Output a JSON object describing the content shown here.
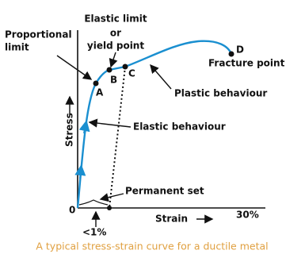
{
  "labels": {
    "elastic_limit": "Elastic limit",
    "or": "or",
    "yield_point": "yield point",
    "proportional": "Proportional",
    "limit": "limit",
    "point_a": "A",
    "point_b": "B",
    "point_c": "C",
    "point_d": "D",
    "fracture_point": "Fracture point",
    "plastic_behaviour": "Plastic behaviour",
    "elastic_behaviour": "Elastic behaviour",
    "stress": "Stress",
    "strain": "Strain",
    "origin": "0",
    "thirty_percent": "30%",
    "permanent_set": "Permanent set",
    "less_than_one": "<1%"
  },
  "caption": "A typical stress-strain curve for a ductile metal"
}
